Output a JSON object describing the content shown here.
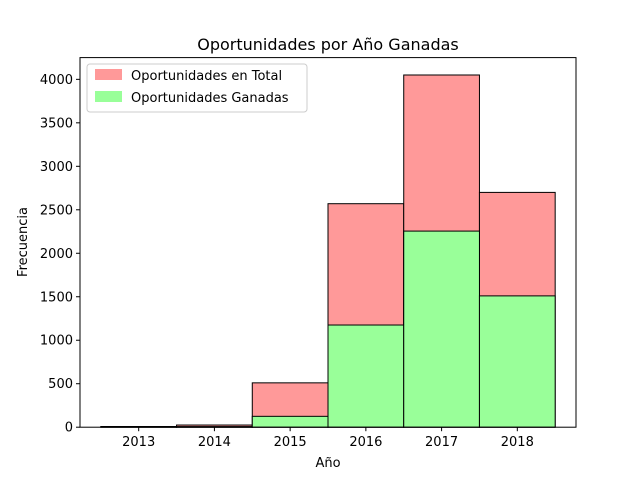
{
  "chart_data": {
    "type": "bar",
    "title": "Oportunidades por Año Ganadas",
    "xlabel": "Año",
    "ylabel": "Frecuencia",
    "categories": [
      "2013",
      "2014",
      "2015",
      "2016",
      "2017",
      "2018"
    ],
    "series": [
      {
        "name": "Oportunidades en Total",
        "values": [
          8,
          25,
          510,
          2570,
          4050,
          2700
        ],
        "color": "#ff9999"
      },
      {
        "name": "Oportunidades Ganadas",
        "values": [
          3,
          7,
          125,
          1175,
          2255,
          1510
        ],
        "color": "#99ff99"
      }
    ],
    "ylim": [
      0,
      4250
    ],
    "yticks": [
      0,
      500,
      1000,
      1500,
      2000,
      2500,
      3000,
      3500,
      4000
    ],
    "legend": "top-left",
    "grid": false,
    "overlay": true
  }
}
